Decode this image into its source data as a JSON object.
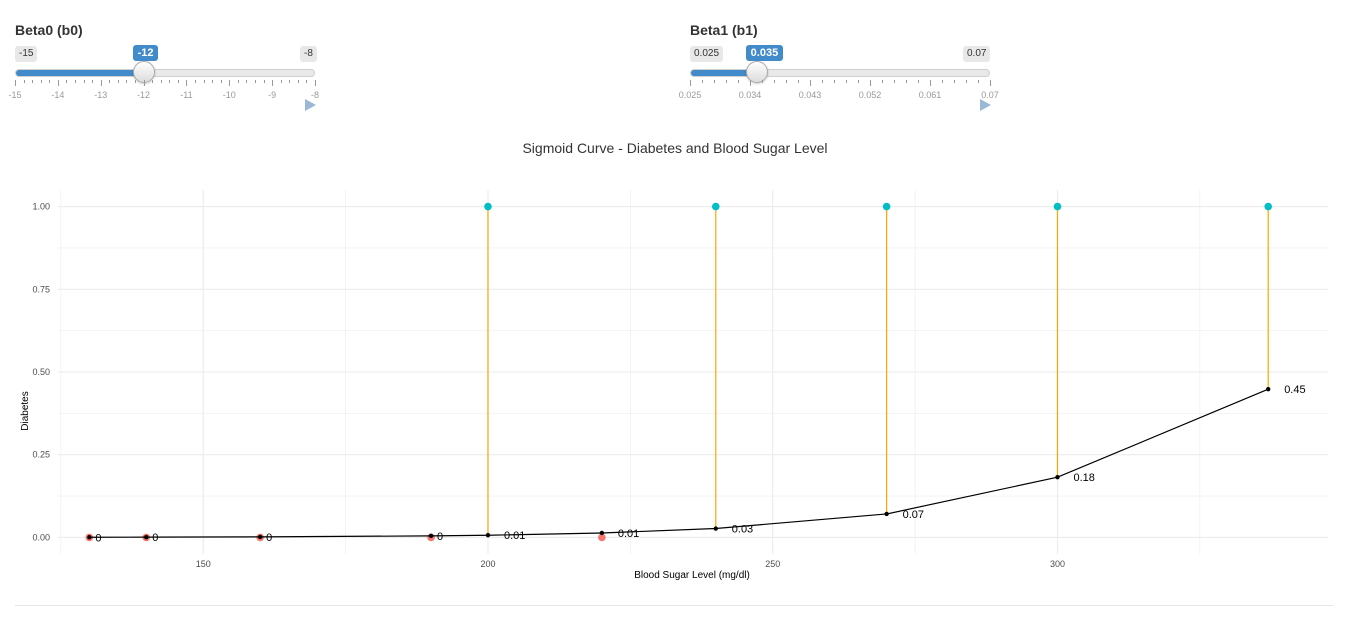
{
  "sliders": [
    {
      "title": "Beta0 (b0)",
      "min_label": "-15",
      "max_label": "-8",
      "value_label": "-12",
      "min": -15,
      "max": -8,
      "value": -12,
      "ticks": [
        "-15",
        "-14",
        "-13",
        "-12",
        "-11",
        "-10",
        "-9",
        "-8"
      ]
    },
    {
      "title": "Beta1 (b1)",
      "min_label": "0.025",
      "max_label": "0.07",
      "value_label": "0.035",
      "min": 0.025,
      "max": 0.07,
      "value": 0.035,
      "ticks": [
        "0.025",
        "0.034",
        "0.043",
        "0.052",
        "0.061",
        "0.07"
      ]
    }
  ],
  "chart_data": {
    "type": "scatter",
    "title": "Sigmoid Curve - Diabetes and Blood Sugar Level",
    "xlabel": "Blood Sugar Level (mg/dl)",
    "ylabel": "Diabetes",
    "xlim": [
      124.5,
      347.5
    ],
    "ylim": [
      -0.05,
      1.05
    ],
    "x_ticks": [
      "150",
      "200",
      "250",
      "300"
    ],
    "x_tick_values": [
      150,
      200,
      250,
      300
    ],
    "y_ticks": [
      "0.00",
      "0.25",
      "0.50",
      "0.75",
      "1.00"
    ],
    "y_tick_values": [
      0,
      0.25,
      0.5,
      0.75,
      1
    ],
    "grid": true,
    "observations": [
      {
        "x": 130,
        "y": 0
      },
      {
        "x": 140,
        "y": 0
      },
      {
        "x": 160,
        "y": 0
      },
      {
        "x": 190,
        "y": 0
      },
      {
        "x": 200,
        "y": 1
      },
      {
        "x": 220,
        "y": 0
      },
      {
        "x": 240,
        "y": 1
      },
      {
        "x": 270,
        "y": 1
      },
      {
        "x": 300,
        "y": 1
      },
      {
        "x": 337,
        "y": 1
      }
    ],
    "curve": [
      {
        "x": 130,
        "y": 0.0006,
        "label": "0"
      },
      {
        "x": 140,
        "y": 0.0009,
        "label": "0"
      },
      {
        "x": 160,
        "y": 0.0017,
        "label": "0"
      },
      {
        "x": 190,
        "y": 0.0048,
        "label": "0"
      },
      {
        "x": 200,
        "y": 0.0067,
        "label": "0.01"
      },
      {
        "x": 220,
        "y": 0.0135,
        "label": "0.01"
      },
      {
        "x": 240,
        "y": 0.027,
        "label": "0.03"
      },
      {
        "x": 270,
        "y": 0.071,
        "label": "0.07"
      },
      {
        "x": 300,
        "y": 0.182,
        "label": "0.18"
      },
      {
        "x": 337,
        "y": 0.448,
        "label": "0.45"
      }
    ],
    "colors": {
      "class0": "#f8766d",
      "class1": "#00bfc4",
      "residual": "#ffa500",
      "curve": "#000000",
      "grid": "#ebebeb"
    }
  }
}
